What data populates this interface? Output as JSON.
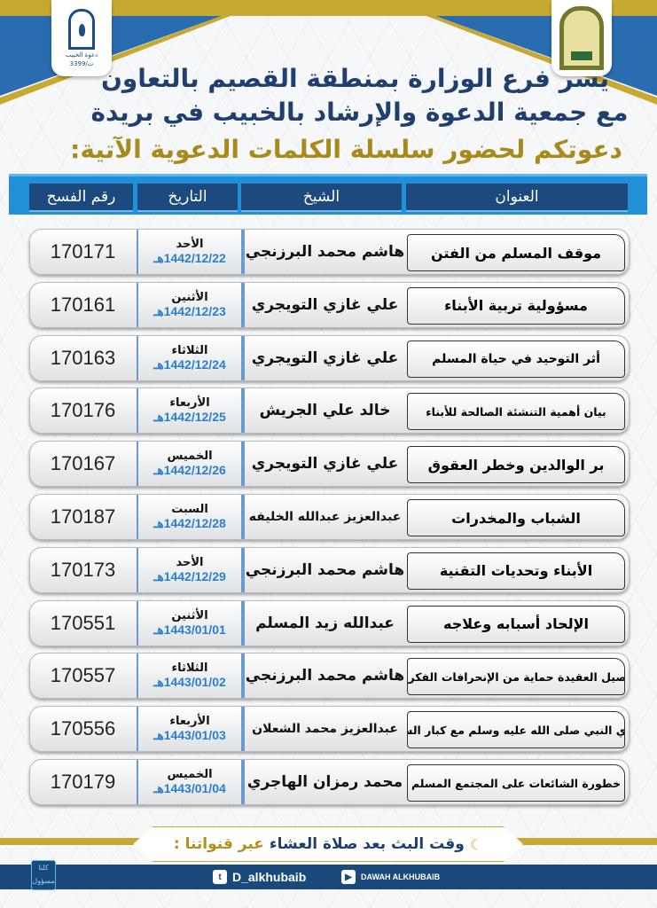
{
  "logos": {
    "left_text": "دعوة الخبيب",
    "left_number": "3399/ت",
    "right": "ministry-logo"
  },
  "heading": {
    "line1": "يسر فرع الوزارة بمنطقة القصيم بالتعاون",
    "line2": "مع جمعية الدعوة والإرشاد بالخبيب في بريدة",
    "line3": "دعوتكم لحضور سلسلة الكلمات الدعوية الآتية:"
  },
  "table_header": {
    "title": "العنوان",
    "sheikh": "الشيخ",
    "date": "التاريخ",
    "permit": "رقم الفسح"
  },
  "rows": [
    {
      "title": "موقف المسلم من الفتن",
      "sheikh": "هاشم محمد البرزنجي",
      "day": "الأحد",
      "date": "1442/12/22هـ",
      "permit": "170171"
    },
    {
      "title": "مسؤولية تربية الأبناء",
      "sheikh": "علي غازي التويجري",
      "day": "الأثنين",
      "date": "1442/12/23هـ",
      "permit": "170161"
    },
    {
      "title": "أثر التوحيد في حياة المسلم",
      "sheikh": "علي غازي التويجري",
      "day": "الثلاثاء",
      "date": "1442/12/24هـ",
      "permit": "170163"
    },
    {
      "title": "بيان أهمية التنشئة الصالحة للأبناء",
      "sheikh": "خالد علي الجريش",
      "day": "الأربعاء",
      "date": "1442/12/25هـ",
      "permit": "170176"
    },
    {
      "title": "بر الوالدين وخطر العقوق",
      "sheikh": "علي غازي التويجري",
      "day": "الخميس",
      "date": "1442/12/26هـ",
      "permit": "170167"
    },
    {
      "title": "الشباب والمخدرات",
      "sheikh": "عبدالعزيز عبدالله الخليفه",
      "day": "السبت",
      "date": "1442/12/28هـ",
      "permit": "170187"
    },
    {
      "title": "الأبناء وتحديات التقنية",
      "sheikh": "هاشم محمد البرزنجي",
      "day": "الأحد",
      "date": "1442/12/29هـ",
      "permit": "170173"
    },
    {
      "title": "الإلحاد أسبابه وعلاجه",
      "sheikh": "عبدالله زيد المسلم",
      "day": "الأثنين",
      "date": "1443/01/01هـ",
      "permit": "170551"
    },
    {
      "title": "تأصيل العقيدة حماية من الإنحرافات الفكرية",
      "sheikh": "هاشم محمد البرزنجي",
      "day": "الثلاثاء",
      "date": "1443/01/02هـ",
      "permit": "170557"
    },
    {
      "title": "هدي النبي صلى الله عليه وسلم مع كبار السن",
      "sheikh": "عبدالعزيز محمد الشعلان",
      "day": "الأربعاء",
      "date": "1443/01/03هـ",
      "permit": "170556"
    },
    {
      "title": "خطورة الشائعات على المجتمع المسلم",
      "sheikh": "محمد رمزان الهاجري",
      "day": "الخميس",
      "date": "1443/01/04هـ",
      "permit": "170179"
    }
  ],
  "footer": {
    "broadcast": "وقت البث بعد صلاة العشاء",
    "channels": "عبر قنواتنا :",
    "twitter": "D_alkhubaib",
    "youtube": "DAWAH ALKHUBAIB",
    "badge_line1": "كلنا",
    "badge_line2": "مسؤول"
  },
  "colors": {
    "navy": "#1f3f6e",
    "gold": "#c8a930",
    "blue": "#2290d8",
    "date_blue": "#2b7ed0"
  }
}
